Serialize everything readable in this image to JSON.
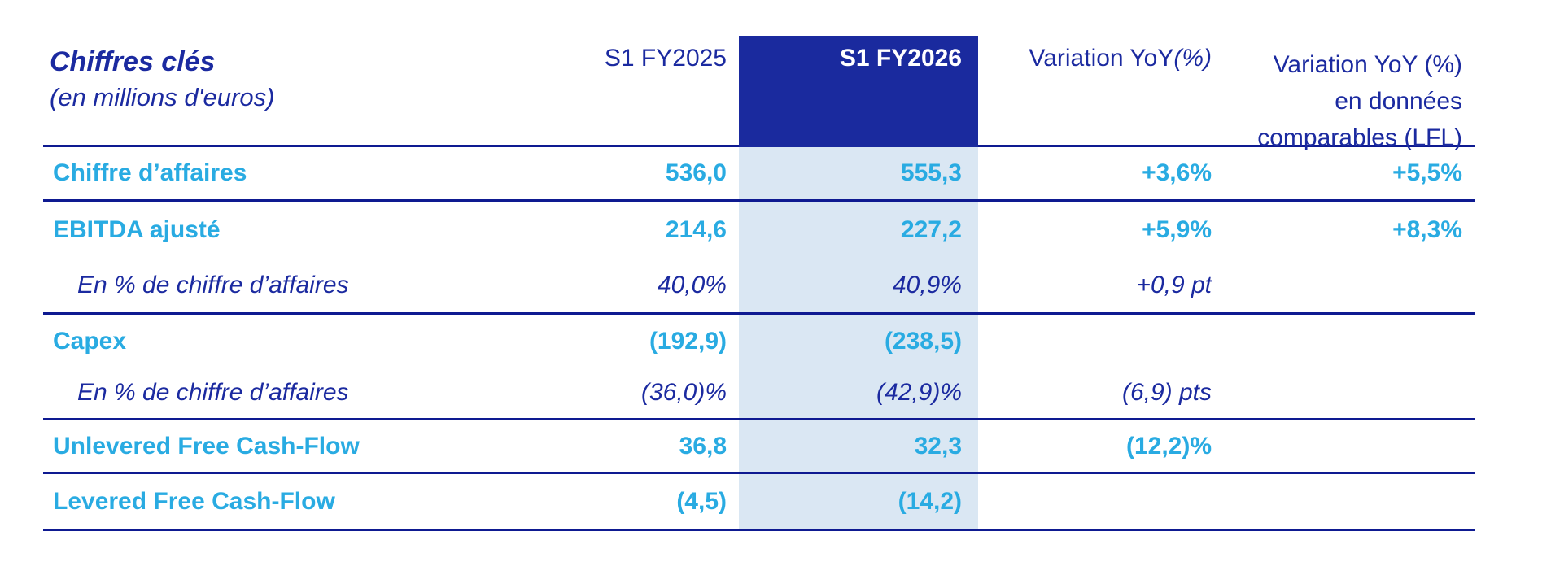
{
  "colors": {
    "navy_text": "#1B2AA0",
    "rule_line": "#0E1A91",
    "metric_cyan": "#29ABE2",
    "highlight_column_bg": "#DAE7F3",
    "header_block_bg": "#1A2A9E",
    "header_block_text": "#FFFFFF"
  },
  "header": {
    "title": "Chiffres clés",
    "subtitle": "(en millions d'euros)",
    "col_fy2025": "S1 FY2025",
    "col_fy2026": "S1 FY2026",
    "col_yoy_prefix": "Variation YoY ",
    "col_yoy_pct": "(%)",
    "col_lfl": [
      "Variation YoY (%)",
      "en données",
      "comparables (LFL)"
    ]
  },
  "rows": [
    {
      "label": "Chiffre d’affaires",
      "fy2025": "536,0",
      "fy2026": "555,3",
      "yoy": "+3,6%",
      "lfl": "+5,5%"
    },
    {
      "label": "EBITDA ajusté",
      "fy2025": "214,6",
      "fy2026": "227,2",
      "yoy": "+5,9%",
      "lfl": "+8,3%"
    },
    {
      "label": "En % de chiffre d’affaires",
      "fy2025": "40,0%",
      "fy2026": "40,9%",
      "yoy": "+0,9 pt",
      "lfl": ""
    },
    {
      "label": "Capex",
      "fy2025": "(192,9)",
      "fy2026": "(238,5)",
      "yoy": "",
      "lfl": ""
    },
    {
      "label": "En % de chiffre d’affaires",
      "fy2025": "(36,0)%",
      "fy2026": "(42,9)%",
      "yoy": "(6,9) pts",
      "lfl": ""
    },
    {
      "label": "Unlevered Free Cash-Flow",
      "fy2025": "36,8",
      "fy2026": "32,3",
      "yoy": "(12,2)%",
      "lfl": ""
    },
    {
      "label": "Levered Free Cash-Flow",
      "fy2025": "(4,5)",
      "fy2026": "(14,2)",
      "yoy": "",
      "lfl": ""
    }
  ]
}
